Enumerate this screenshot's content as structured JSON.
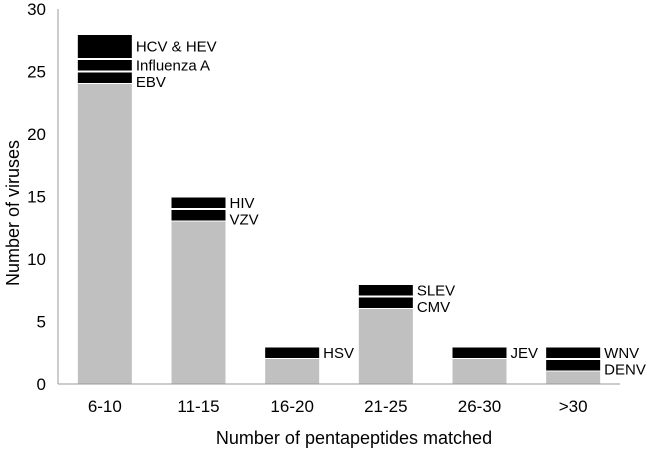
{
  "chart_data": {
    "type": "bar",
    "stacked": true,
    "title": "",
    "xlabel": "Number of pentapeptides matched",
    "ylabel": "Number of viruses",
    "ylim": [
      0,
      30
    ],
    "yticks": [
      0,
      5,
      10,
      15,
      20,
      25,
      30
    ],
    "categories": [
      "6-10",
      "11-15",
      "16-20",
      "21-25",
      "26-30",
      ">30"
    ],
    "grid": false,
    "legend": "none",
    "colors": {
      "base": "#c0c0c0",
      "highlight": "#000000"
    },
    "base_values": [
      24,
      13,
      2,
      6,
      2,
      1
    ],
    "highlighted": [
      {
        "category": "6-10",
        "labels": [
          "EBV",
          "Influenza A",
          "HCV & HEV"
        ],
        "values": [
          1,
          1,
          2
        ]
      },
      {
        "category": "11-15",
        "labels": [
          "VZV",
          "HIV"
        ],
        "values": [
          1,
          1
        ]
      },
      {
        "category": "16-20",
        "labels": [
          "HSV"
        ],
        "values": [
          1
        ]
      },
      {
        "category": "21-25",
        "labels": [
          "CMV",
          "SLEV"
        ],
        "values": [
          1,
          1
        ]
      },
      {
        "category": "26-30",
        "labels": [
          "JEV"
        ],
        "values": [
          1
        ]
      },
      {
        "category": ">30",
        "labels": [
          "DENV",
          "WNV"
        ],
        "values": [
          1,
          1
        ]
      }
    ]
  }
}
